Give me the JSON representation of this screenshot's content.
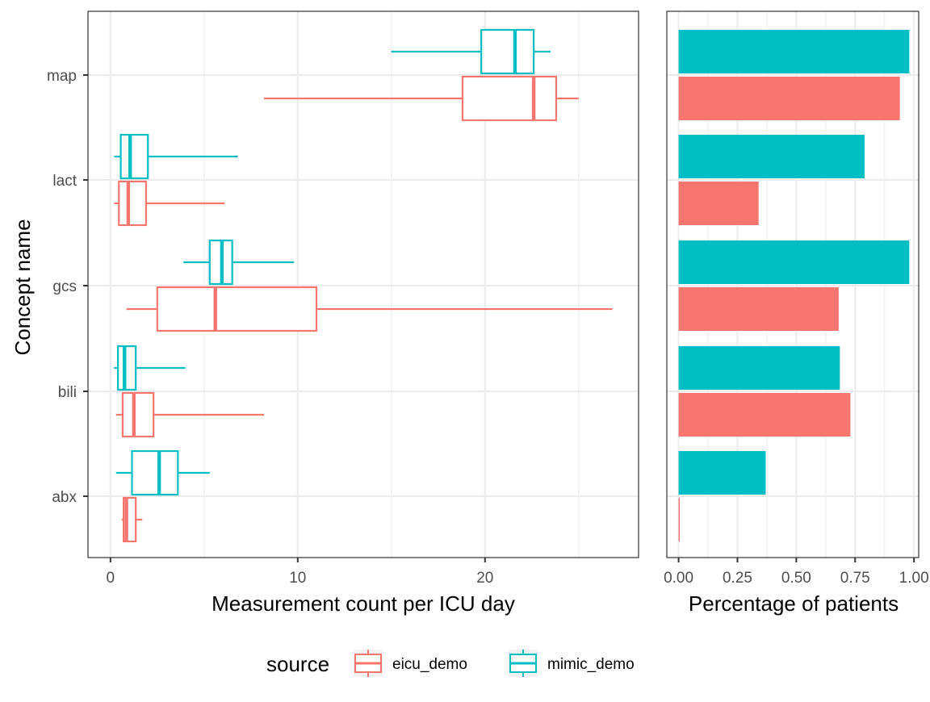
{
  "chart_data": [
    {
      "type": "boxplot",
      "orientation": "horizontal",
      "xlabel": "Measurement count per ICU day",
      "ylabel": "Concept name",
      "xlim": [
        -1.2,
        28.2
      ],
      "x_ticks": [
        0,
        10,
        20
      ],
      "x_tick_labels": [
        "0",
        "10",
        "20"
      ],
      "categories": [
        "map",
        "lact",
        "gcs",
        "bili",
        "abx"
      ],
      "grid": true,
      "series": [
        {
          "name": "eicu_demo",
          "color": "#F8766D",
          "boxes": [
            {
              "category": "map",
              "whisker_low": 8.2,
              "q1": 18.8,
              "median": 22.6,
              "q3": 23.8,
              "whisker_high": 25.0
            },
            {
              "category": "lact",
              "whisker_low": 0.2,
              "q1": 0.45,
              "median": 0.95,
              "q3": 1.9,
              "whisker_high": 6.1
            },
            {
              "category": "gcs",
              "whisker_low": 0.85,
              "q1": 2.5,
              "median": 5.6,
              "q3": 11.0,
              "whisker_high": 26.8
            },
            {
              "category": "bili",
              "whisker_low": 0.3,
              "q1": 0.65,
              "median": 1.25,
              "q3": 2.3,
              "whisker_high": 8.2
            },
            {
              "category": "abx",
              "whisker_low": 0.6,
              "q1": 0.7,
              "median": 0.85,
              "q3": 1.35,
              "whisker_high": 1.7
            }
          ]
        },
        {
          "name": "mimic_demo",
          "color": "#00BFC4",
          "boxes": [
            {
              "category": "map",
              "whisker_low": 15.0,
              "q1": 19.8,
              "median": 21.6,
              "q3": 22.6,
              "whisker_high": 23.5
            },
            {
              "category": "lact",
              "whisker_low": 0.2,
              "q1": 0.55,
              "median": 1.05,
              "q3": 2.0,
              "whisker_high": 6.8
            },
            {
              "category": "gcs",
              "whisker_low": 3.9,
              "q1": 5.3,
              "median": 5.95,
              "q3": 6.5,
              "whisker_high": 9.8
            },
            {
              "category": "bili",
              "whisker_low": 0.2,
              "q1": 0.4,
              "median": 0.75,
              "q3": 1.35,
              "whisker_high": 4.0
            },
            {
              "category": "abx",
              "whisker_low": 0.3,
              "q1": 1.15,
              "median": 2.6,
              "q3": 3.6,
              "whisker_high": 5.3
            }
          ]
        }
      ]
    },
    {
      "type": "bar",
      "orientation": "horizontal",
      "xlabel": "Percentage of patients",
      "ylabel": "",
      "xlim": [
        -0.05,
        1.02
      ],
      "x_ticks": [
        0,
        0.25,
        0.5,
        0.75,
        1.0
      ],
      "x_tick_labels": [
        "0.00",
        "0.25",
        "0.50",
        "0.75",
        "1.00"
      ],
      "categories": [
        "map",
        "lact",
        "gcs",
        "bili",
        "abx"
      ],
      "grid": true,
      "series": [
        {
          "name": "eicu_demo",
          "color": "#F8766D",
          "values": [
            0.94,
            0.34,
            0.68,
            0.73,
            0.005
          ]
        },
        {
          "name": "mimic_demo",
          "color": "#00BFC4",
          "values": [
            0.98,
            0.79,
            0.98,
            0.685,
            0.37
          ]
        }
      ]
    }
  ],
  "legend": {
    "title": "source",
    "position": "bottom",
    "entries": [
      {
        "label": "eicu_demo",
        "color": "#F8766D"
      },
      {
        "label": "mimic_demo",
        "color": "#00BFC4"
      }
    ]
  }
}
